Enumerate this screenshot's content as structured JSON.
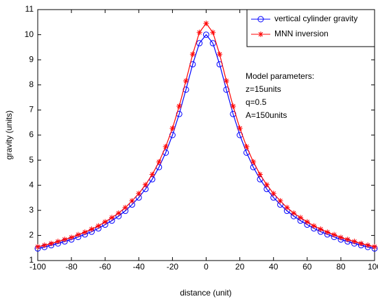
{
  "chart_data": {
    "type": "line",
    "xlabel": "distance (unit)",
    "ylabel": "gravity (units)",
    "x": [
      -100,
      -96,
      -92,
      -88,
      -84,
      -80,
      -76,
      -72,
      -68,
      -64,
      -60,
      -56,
      -52,
      -48,
      -44,
      -40,
      -36,
      -32,
      -28,
      -24,
      -20,
      -16,
      -12,
      -8,
      -4,
      0,
      4,
      8,
      12,
      16,
      20,
      24,
      28,
      32,
      36,
      40,
      44,
      48,
      52,
      56,
      60,
      64,
      68,
      72,
      76,
      80,
      84,
      88,
      92,
      96,
      100
    ],
    "series": [
      {
        "name": "vertical cylinder gravity",
        "color": "#0000ff",
        "marker": "circle",
        "values": [
          1.48,
          1.54,
          1.61,
          1.68,
          1.76,
          1.84,
          1.94,
          2.04,
          2.15,
          2.28,
          2.43,
          2.59,
          2.77,
          2.98,
          3.23,
          3.51,
          3.85,
          4.24,
          4.72,
          5.3,
          6.0,
          6.84,
          7.81,
          8.82,
          9.66,
          10.0,
          9.66,
          8.82,
          7.81,
          6.84,
          6.0,
          5.3,
          4.72,
          4.24,
          3.85,
          3.51,
          3.23,
          2.98,
          2.77,
          2.59,
          2.43,
          2.28,
          2.15,
          2.04,
          1.94,
          1.84,
          1.76,
          1.68,
          1.61,
          1.54,
          1.48
        ]
      },
      {
        "name": "MNN inversion",
        "color": "#ff0000",
        "marker": "star",
        "values": [
          1.55,
          1.61,
          1.68,
          1.76,
          1.84,
          1.92,
          2.03,
          2.13,
          2.25,
          2.38,
          2.54,
          2.71,
          2.89,
          3.11,
          3.38,
          3.67,
          4.02,
          4.43,
          4.93,
          5.54,
          6.27,
          7.15,
          8.16,
          9.22,
          10.09,
          10.45,
          10.09,
          9.22,
          8.16,
          7.15,
          6.27,
          5.54,
          4.93,
          4.43,
          4.02,
          3.67,
          3.38,
          3.11,
          2.89,
          2.71,
          2.54,
          2.38,
          2.25,
          2.13,
          2.03,
          1.92,
          1.84,
          1.76,
          1.68,
          1.61,
          1.55
        ]
      }
    ],
    "xlim": [
      -100,
      100
    ],
    "xticks": [
      -100,
      -80,
      -60,
      -40,
      -20,
      0,
      20,
      40,
      60,
      80,
      100
    ],
    "ylim": [
      1,
      11
    ],
    "yticks": [
      1,
      2,
      3,
      4,
      5,
      6,
      7,
      8,
      9,
      10,
      11
    ],
    "grid": false,
    "legend": "upper right",
    "annotation": [
      "Model parameters:",
      "z=15units",
      "q=0.5",
      "A=150units"
    ]
  }
}
